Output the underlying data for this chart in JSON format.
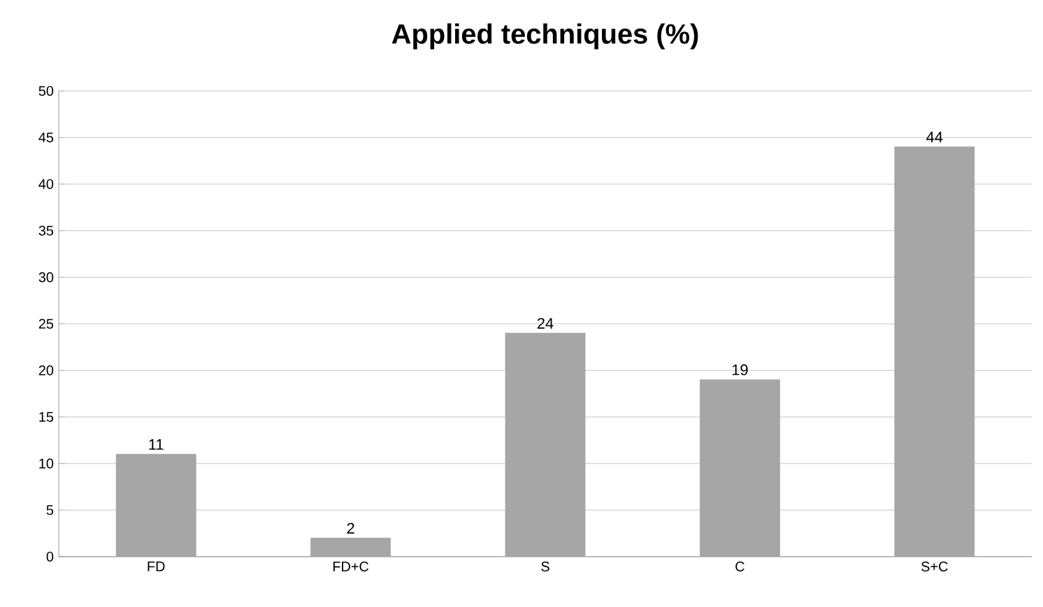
{
  "chart_data": {
    "type": "bar",
    "title": "Applied techniques (%)",
    "categories": [
      "FD",
      "FD+C",
      "S",
      "C",
      "S+C"
    ],
    "values": [
      11,
      2,
      24,
      19,
      44
    ],
    "color": "#a6a6a6",
    "ylim": [
      0,
      50
    ],
    "yticks": [
      0,
      5,
      10,
      15,
      20,
      25,
      30,
      35,
      40,
      45,
      50
    ],
    "grid": "y",
    "data_labels": true
  }
}
